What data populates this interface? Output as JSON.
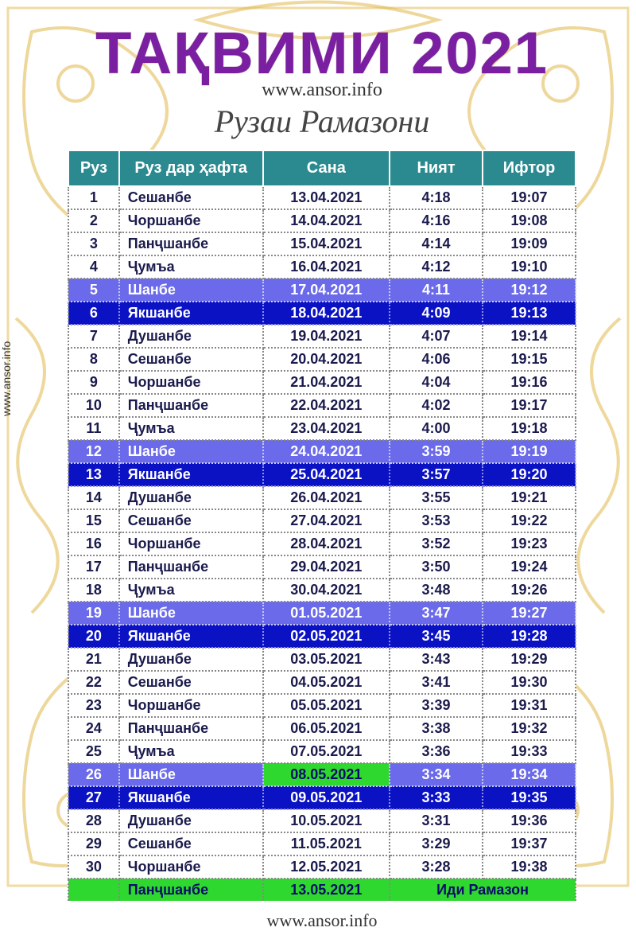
{
  "title": "ТАҚВИМИ 2021",
  "url_top": "www.ansor.info",
  "subtitle": "Рузаи Рамазони",
  "watermark": "www.ansor.info",
  "url_bottom": "www.ansor.info",
  "headers": {
    "day": "Руз",
    "weekday": "Руз дар ҳафта",
    "date": "Сана",
    "niyat": "Ният",
    "iftor": "Ифтор"
  },
  "colors": {
    "title": "#7b1fa2",
    "header_bg": "#2a8a8f",
    "header_fg": "#ffffff",
    "row_fg": "#1a1a4d",
    "hl_light_bg": "#6a6aea",
    "hl_dark_bg": "#0a12c4",
    "hl_fg": "#ffffff",
    "green_bg": "#2fd82f",
    "ornament": "#e0b84a"
  },
  "rows": [
    {
      "n": "1",
      "wd": "Сешанбе",
      "d": "13.04.2021",
      "ni": "4:18",
      "if": "19:07",
      "hl": ""
    },
    {
      "n": "2",
      "wd": "Чоршанбе",
      "d": "14.04.2021",
      "ni": "4:16",
      "if": "19:08",
      "hl": ""
    },
    {
      "n": "3",
      "wd": "Панҷшанбе",
      "d": "15.04.2021",
      "ni": "4:14",
      "if": "19:09",
      "hl": ""
    },
    {
      "n": "4",
      "wd": "Ҷумъа",
      "d": "16.04.2021",
      "ni": "4:12",
      "if": "19:10",
      "hl": ""
    },
    {
      "n": "5",
      "wd": "Шанбе",
      "d": "17.04.2021",
      "ni": "4:11",
      "if": "19:12",
      "hl": "light"
    },
    {
      "n": "6",
      "wd": "Якшанбе",
      "d": "18.04.2021",
      "ni": "4:09",
      "if": "19:13",
      "hl": "dark"
    },
    {
      "n": "7",
      "wd": "Душанбе",
      "d": "19.04.2021",
      "ni": "4:07",
      "if": "19:14",
      "hl": ""
    },
    {
      "n": "8",
      "wd": "Сешанбе",
      "d": "20.04.2021",
      "ni": "4:06",
      "if": "19:15",
      "hl": ""
    },
    {
      "n": "9",
      "wd": "Чоршанбе",
      "d": "21.04.2021",
      "ni": "4:04",
      "if": "19:16",
      "hl": ""
    },
    {
      "n": "10",
      "wd": "Панҷшанбе",
      "d": "22.04.2021",
      "ni": "4:02",
      "if": "19:17",
      "hl": ""
    },
    {
      "n": "11",
      "wd": "Ҷумъа",
      "d": "23.04.2021",
      "ni": "4:00",
      "if": "19:18",
      "hl": ""
    },
    {
      "n": "12",
      "wd": "Шанбе",
      "d": "24.04.2021",
      "ni": "3:59",
      "if": "19:19",
      "hl": "light"
    },
    {
      "n": "13",
      "wd": "Якшанбе",
      "d": "25.04.2021",
      "ni": "3:57",
      "if": "19:20",
      "hl": "dark"
    },
    {
      "n": "14",
      "wd": "Душанбе",
      "d": "26.04.2021",
      "ni": "3:55",
      "if": "19:21",
      "hl": ""
    },
    {
      "n": "15",
      "wd": "Сешанбе",
      "d": "27.04.2021",
      "ni": "3:53",
      "if": "19:22",
      "hl": ""
    },
    {
      "n": "16",
      "wd": "Чоршанбе",
      "d": "28.04.2021",
      "ni": "3:52",
      "if": "19:23",
      "hl": ""
    },
    {
      "n": "17",
      "wd": "Панҷшанбе",
      "d": "29.04.2021",
      "ni": "3:50",
      "if": "19:24",
      "hl": ""
    },
    {
      "n": "18",
      "wd": "Ҷумъа",
      "d": "30.04.2021",
      "ni": "3:48",
      "if": "19:26",
      "hl": ""
    },
    {
      "n": "19",
      "wd": "Шанбе",
      "d": "01.05.2021",
      "ni": "3:47",
      "if": "19:27",
      "hl": "light"
    },
    {
      "n": "20",
      "wd": "Якшанбе",
      "d": "02.05.2021",
      "ni": "3:45",
      "if": "19:28",
      "hl": "dark"
    },
    {
      "n": "21",
      "wd": "Душанбе",
      "d": "03.05.2021",
      "ni": "3:43",
      "if": "19:29",
      "hl": ""
    },
    {
      "n": "22",
      "wd": "Сешанбе",
      "d": "04.05.2021",
      "ni": "3:41",
      "if": "19:30",
      "hl": ""
    },
    {
      "n": "23",
      "wd": "Чоршанбе",
      "d": "05.05.2021",
      "ni": "3:39",
      "if": "19:31",
      "hl": ""
    },
    {
      "n": "24",
      "wd": "Панҷшанбе",
      "d": "06.05.2021",
      "ni": "3:38",
      "if": "19:32",
      "hl": ""
    },
    {
      "n": "25",
      "wd": "Ҷумъа",
      "d": "07.05.2021",
      "ni": "3:36",
      "if": "19:33",
      "hl": ""
    },
    {
      "n": "26",
      "wd": "Шанбе",
      "d": "08.05.2021",
      "ni": "3:34",
      "if": "19:34",
      "hl": "light",
      "green_date": true
    },
    {
      "n": "27",
      "wd": "Якшанбе",
      "d": "09.05.2021",
      "ni": "3:33",
      "if": "19:35",
      "hl": "dark"
    },
    {
      "n": "28",
      "wd": "Душанбе",
      "d": "10.05.2021",
      "ni": "3:31",
      "if": "19:36",
      "hl": ""
    },
    {
      "n": "29",
      "wd": "Сешанбе",
      "d": "11.05.2021",
      "ni": "3:29",
      "if": "19:37",
      "hl": ""
    },
    {
      "n": "30",
      "wd": "Чоршанбе",
      "d": "12.05.2021",
      "ni": "3:28",
      "if": "19:38",
      "hl": ""
    }
  ],
  "last_row": {
    "weekday": "Панҷшанбе",
    "date": "13.05.2021",
    "label": "Иди Рамазон"
  }
}
